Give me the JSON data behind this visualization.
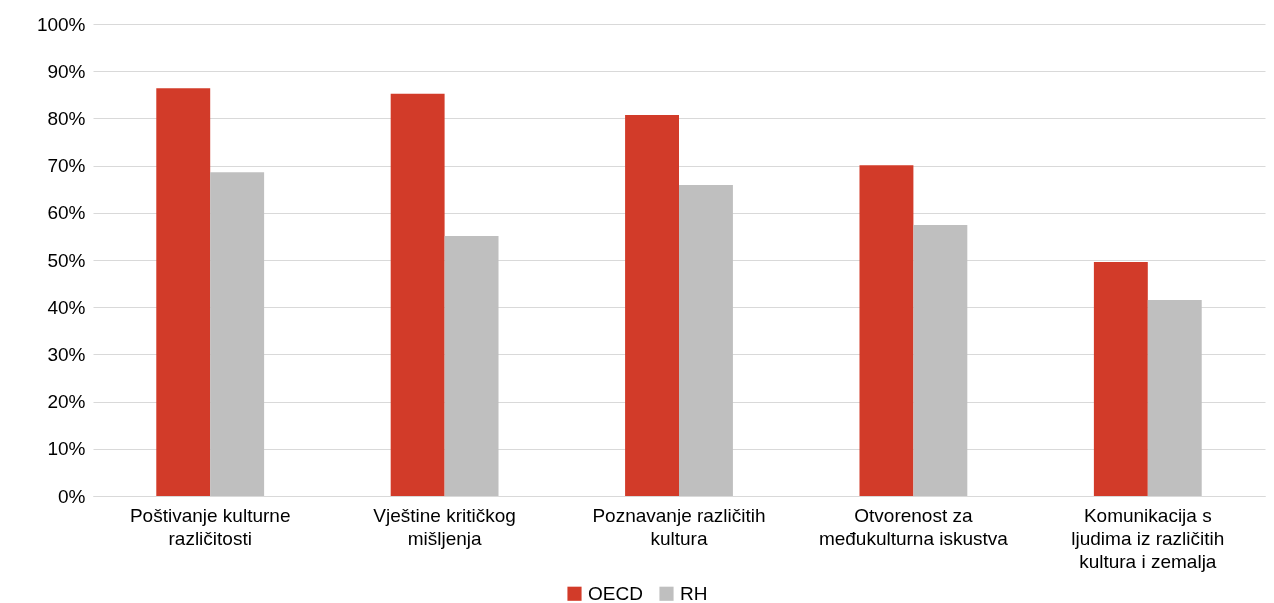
{
  "chart_data": {
    "type": "bar",
    "categories": [
      "Poštivanje kulturne različitosti",
      "Vještine kritičkog mišljenja",
      "Poznavanje različitih kultura",
      "Otvorenost za međukulturna iskustva",
      "Komunikacija s ljudima iz različitih kultura i zemalja"
    ],
    "series": [
      {
        "name": "OECD",
        "color": "#d23b29",
        "values": [
          86.4,
          85.2,
          80.7,
          70.1,
          49.6
        ]
      },
      {
        "name": "RH",
        "color": "#bfbfbf",
        "values": [
          68.6,
          55.1,
          65.9,
          57.4,
          41.5
        ]
      }
    ],
    "ylim": [
      0,
      100
    ],
    "yticks": [
      {
        "value": 0,
        "label": "0%"
      },
      {
        "value": 10,
        "label": "10%"
      },
      {
        "value": 20,
        "label": "20%"
      },
      {
        "value": 30,
        "label": "30%"
      },
      {
        "value": 40,
        "label": "40%"
      },
      {
        "value": 50,
        "label": "50%"
      },
      {
        "value": 60,
        "label": "60%"
      },
      {
        "value": 70,
        "label": "70%"
      },
      {
        "value": 80,
        "label": "80%"
      },
      {
        "value": 90,
        "label": "90%"
      },
      {
        "value": 100,
        "label": "100%"
      }
    ],
    "grid": "y",
    "legend": "bottom"
  }
}
